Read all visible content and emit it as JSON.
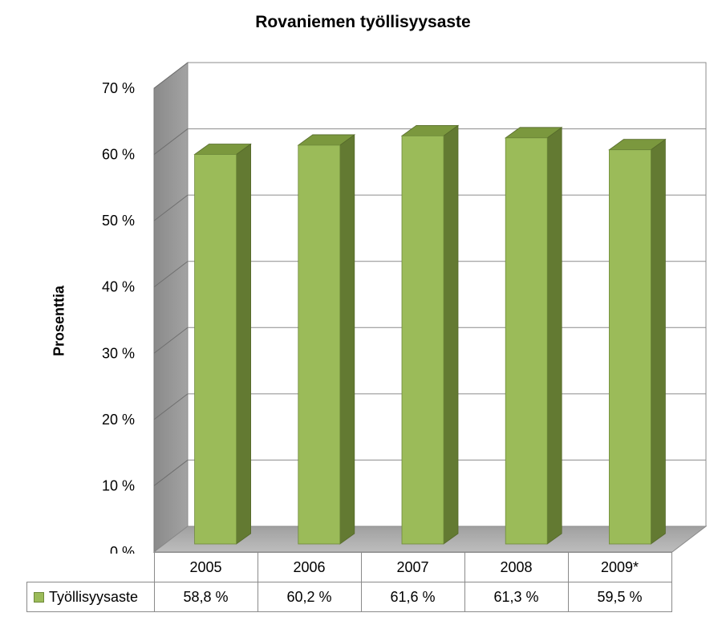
{
  "chart_data": {
    "type": "bar",
    "title": "Rovaniemen työllisyysaste",
    "ylabel": "Prosenttia",
    "xlabel": "",
    "categories": [
      "2005",
      "2006",
      "2007",
      "2008",
      "2009*"
    ],
    "series": [
      {
        "name": "Työllisyysaste",
        "values": [
          58.8,
          60.2,
          61.6,
          61.3,
          59.5
        ],
        "labels": [
          "58,8 %",
          "60,2 %",
          "61,6 %",
          "61,3 %",
          "59,5 %"
        ]
      }
    ],
    "ylim": [
      0,
      70
    ],
    "yticks": [
      "0 %",
      "10 %",
      "20 %",
      "30 %",
      "40 %",
      "50 %",
      "60 %",
      "70 %"
    ],
    "grid": true,
    "legend": "data-table",
    "style": "3d-column",
    "colors": {
      "bar_front": "#9bbb59",
      "bar_top": "#7b983e",
      "bar_side": "#637a32",
      "back_wall": "#ffffff",
      "side_wall": "#909090",
      "floor": "#a9a9a9",
      "grid": "#8c8c8c"
    }
  }
}
